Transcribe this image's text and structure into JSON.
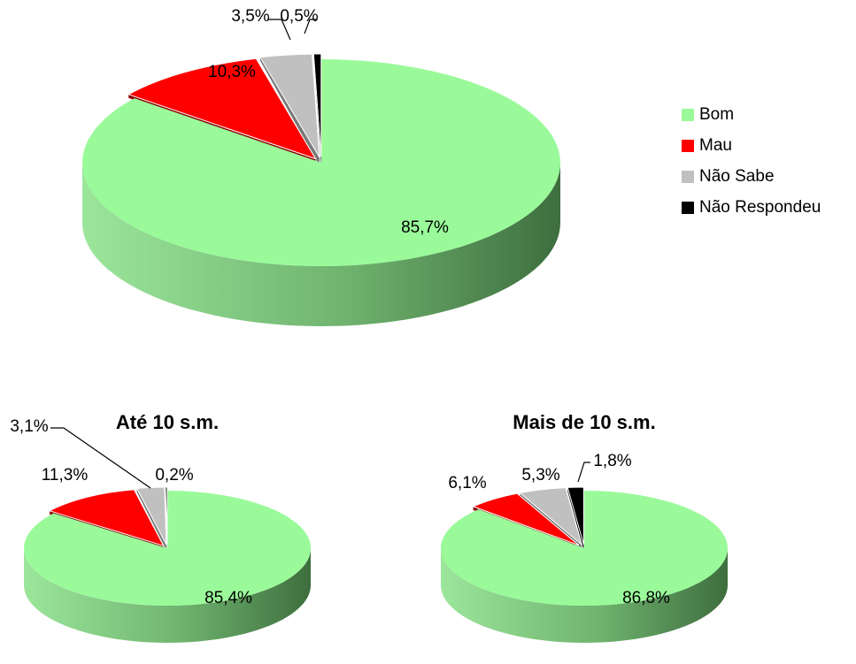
{
  "colors": {
    "Bom": "#9afa9a",
    "Bom_side": "#4f8f4f",
    "Mau": "#ff0000",
    "Mau_side": "#8b0000",
    "Não Sabe": "#c0c0c0",
    "Não Sabe_side": "#7a7a7a",
    "Não Respondeu": "#000000",
    "Não Respondeu_side": "#000000"
  },
  "legend": [
    {
      "label": "Bom",
      "color": "#9afa9a"
    },
    {
      "label": "Mau",
      "color": "#ff0000"
    },
    {
      "label": "Não Sabe",
      "color": "#c0c0c0"
    },
    {
      "label": "Não Respondeu",
      "color": "#000000"
    }
  ],
  "chart_data": [
    {
      "type": "pie",
      "title": "",
      "categories": [
        "Bom",
        "Mau",
        "Não Sabe",
        "Não Respondeu"
      ],
      "values": [
        85.7,
        10.3,
        3.5,
        0.5
      ],
      "labels": [
        "85,7%",
        "10,3%",
        "3,5%",
        "0,5%"
      ]
    },
    {
      "type": "pie",
      "title": "Até 10 s.m.",
      "categories": [
        "Bom",
        "Mau",
        "Não Sabe",
        "Não Respondeu"
      ],
      "values": [
        85.4,
        11.3,
        3.1,
        0.2
      ],
      "labels": [
        "85,4%",
        "11,3%",
        "3,1%",
        "0,2%"
      ]
    },
    {
      "type": "pie",
      "title": "Mais de 10 s.m.",
      "categories": [
        "Bom",
        "Mau",
        "Não Sabe",
        "Não Respondeu"
      ],
      "values": [
        86.8,
        6.1,
        5.3,
        1.8
      ],
      "labels": [
        "86,8%",
        "6,1%",
        "5,3%",
        "1,8%"
      ]
    }
  ]
}
